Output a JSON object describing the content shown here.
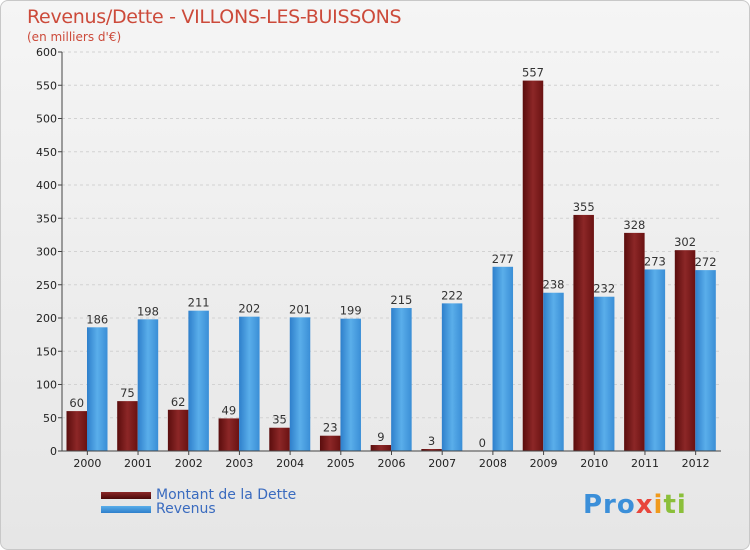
{
  "header": {
    "title": "Revenus/Dette - VILLONS-LES-BUISSONS",
    "subtitle": "(en milliers d'€)"
  },
  "chart_data": {
    "type": "bar",
    "categories": [
      "2000",
      "2001",
      "2002",
      "2003",
      "2004",
      "2005",
      "2006",
      "2007",
      "2008",
      "2009",
      "2010",
      "2011",
      "2012"
    ],
    "series": [
      {
        "name": "Montant de la Dette",
        "color": "#7a1a1a",
        "values": [
          60,
          75,
          62,
          49,
          35,
          23,
          9,
          3,
          0,
          557,
          355,
          328,
          302
        ]
      },
      {
        "name": "Revenus",
        "color": "#3f95dc",
        "values": [
          186,
          198,
          211,
          202,
          201,
          199,
          215,
          222,
          277,
          238,
          232,
          273,
          272
        ]
      }
    ],
    "ylim": [
      0,
      600
    ],
    "yticks": [
      0,
      50,
      100,
      150,
      200,
      250,
      300,
      350,
      400,
      450,
      500,
      550,
      600
    ],
    "grid": true,
    "legend_position": "bottom-left"
  },
  "legend": {
    "debt_label": "Montant de la Dette",
    "revenue_label": "Revenus"
  },
  "brand": {
    "logo_part1": "Pro",
    "logo_part2": "x",
    "logo_part3": "i",
    "logo_part4": "ti"
  }
}
